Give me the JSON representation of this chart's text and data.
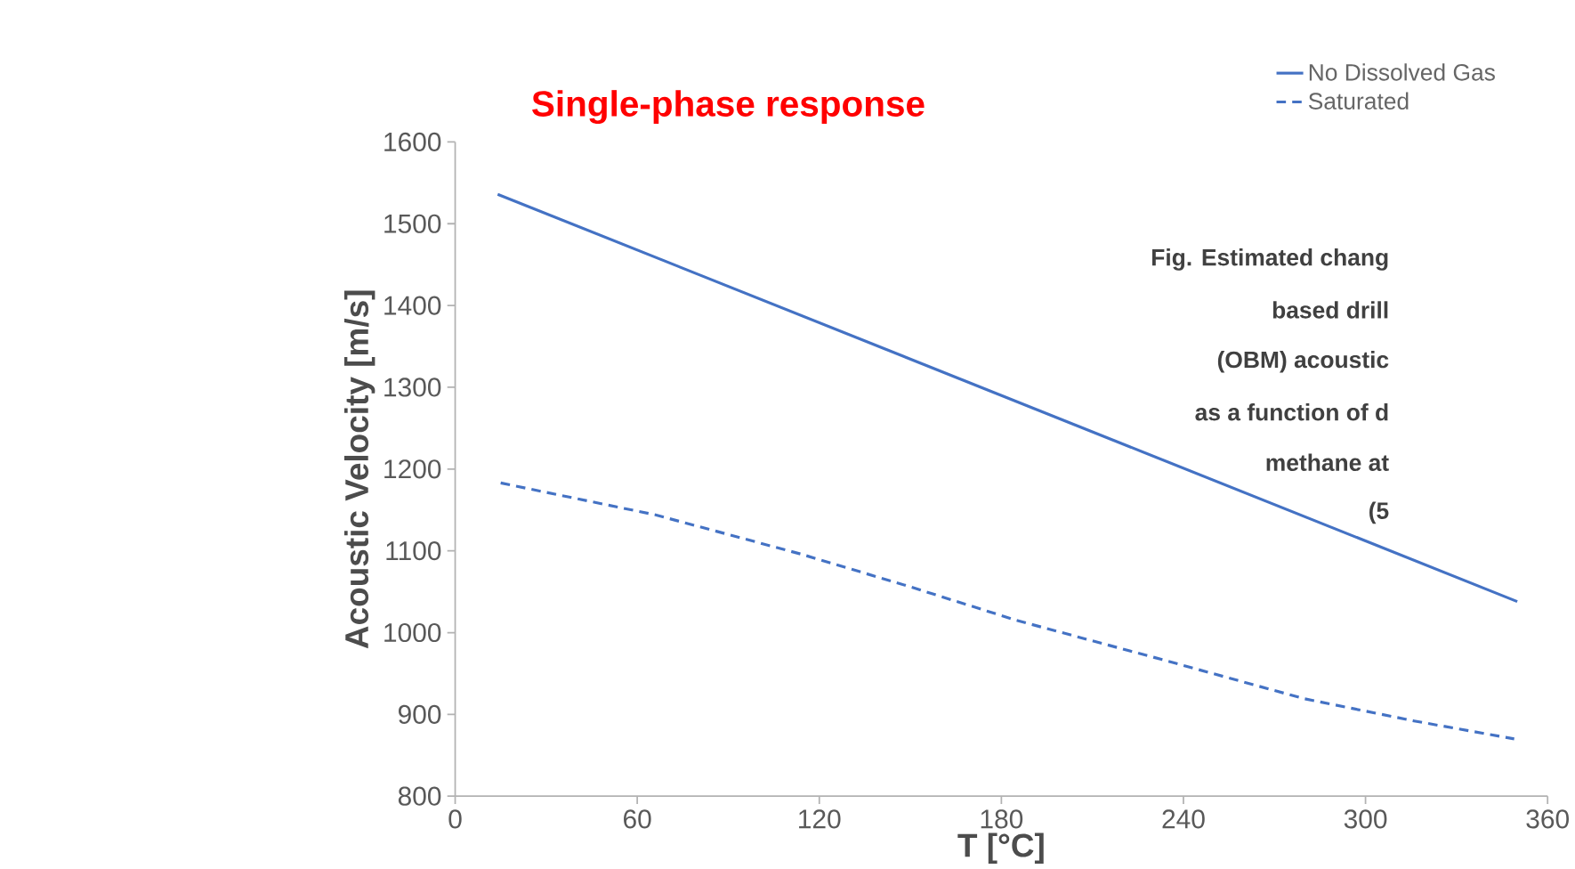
{
  "chart_data": {
    "type": "line",
    "title": "Single-phase response",
    "xlabel": "T [°C]",
    "ylabel": "Acoustic Velocity [m/s]",
    "xlim": [
      0,
      360
    ],
    "xticks": [
      0,
      60,
      120,
      180,
      240,
      300,
      360
    ],
    "ylim": [
      800,
      1600
    ],
    "yticks": [
      800,
      900,
      1000,
      1100,
      1200,
      1300,
      1400,
      1500,
      1600
    ],
    "legend": "top right",
    "series": [
      {
        "name": "No Dissolved Gas",
        "color": "#4472c4",
        "line_style": "solid",
        "x": [
          14,
          350
        ],
        "values": [
          1536,
          1038
        ]
      },
      {
        "name": "Saturated",
        "color": "#4472c4",
        "line_style": "dashed",
        "x": [
          15,
          66,
          114,
          150,
          185,
          233,
          280,
          316,
          349
        ],
        "values": [
          1183,
          1144,
          1096,
          1056,
          1015,
          967,
          919,
          892,
          870
        ]
      }
    ],
    "annotations": [
      "Fig.  Estimated chang",
      "based drill",
      "(OBM) acoustic",
      "as a function of d",
      "methane at",
      "(5"
    ]
  }
}
